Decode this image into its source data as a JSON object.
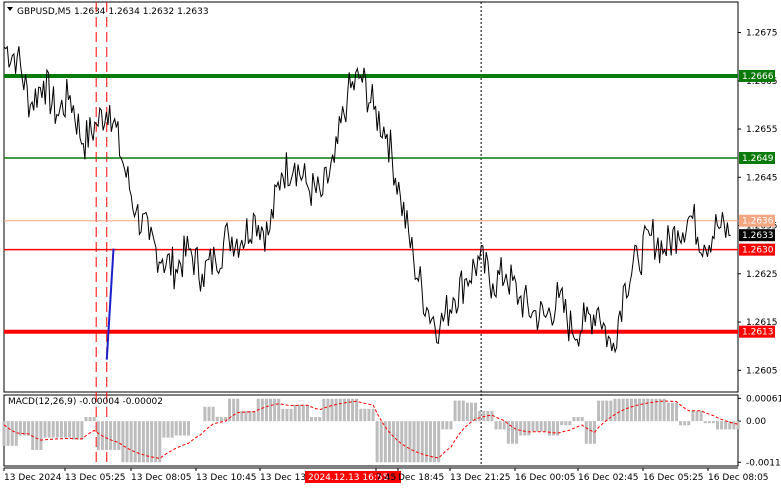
{
  "header": {
    "symbol": "GBPUSD,M5",
    "ohlc": "1.2634 1.2634 1.2632 1.2633"
  },
  "colors": {
    "background": "#ffffff",
    "price_line": "#000000",
    "resistance": "#0a7a0a",
    "support": "#ff0000",
    "current_price_line": "#f4a582",
    "bid_tag": "#000000",
    "arrow": "#1e1ec8",
    "macd_hist": "#bdbdbd",
    "macd_signal": "#ff0000",
    "vline": "#ff0000",
    "period_sep": "#000000",
    "time_highlight": "#ff0000"
  },
  "chart_data": [
    {
      "type": "line",
      "title": "",
      "y_axis_labels": [
        "1.2675",
        "1.2665",
        "1.2655",
        "1.2645",
        "1.2635",
        "1.2625",
        "1.2615",
        "1.2605"
      ],
      "ylim": [
        1.26005,
        1.26805
      ],
      "x_axis_labels": [
        "13 Dec 2024",
        "13 Dec 05:25",
        "13 Dec 08:05",
        "13 Dec 10:45",
        "13 Dec 13:",
        "2024.12.13 16:55",
        "7:45",
        "Dec 18:45",
        "13 Dec 21:25",
        "16 Dec 00:05",
        "16 Dec 02:45",
        "16 Dec 05:25",
        "16 Dec 08:05"
      ],
      "highlighted_time": "2024.12.13 16:55",
      "levels": [
        {
          "value": 1.2666,
          "label": "1.2666",
          "kind": "resistance",
          "thick": true
        },
        {
          "value": 1.2649,
          "label": "1.2649",
          "kind": "resistance",
          "thick": false
        },
        {
          "value": 1.2636,
          "label": "1.2636",
          "kind": "current",
          "thick": false
        },
        {
          "value": 1.263,
          "label": "1.2630",
          "kind": "support",
          "thick": false
        },
        {
          "value": 1.2613,
          "label": "1.2613",
          "kind": "support",
          "thick": true
        }
      ],
      "bid": {
        "value": 1.2633,
        "label": "1.2633"
      },
      "arrow": {
        "from": [
          0.14,
          1.26072
        ],
        "to": [
          0.1492,
          1.26302
        ]
      },
      "vertical_lines": [
        0.1256,
        0.14
      ],
      "period_separators": [
        0.65
      ],
      "series": [
        {
          "x": [
            0.0,
            0.018,
            0.036,
            0.054,
            0.072,
            0.09,
            0.108,
            0.126,
            0.144,
            0.162,
            0.18,
            0.198,
            0.216,
            0.234,
            0.252,
            0.27,
            0.288,
            0.306,
            0.324,
            0.342,
            0.36,
            0.378,
            0.396,
            0.414,
            0.432,
            0.45,
            0.468,
            0.486,
            0.504,
            0.522,
            0.54,
            0.558,
            0.576,
            0.594,
            0.612,
            0.63,
            0.648,
            0.666,
            0.684,
            0.702,
            0.72,
            0.738,
            0.756,
            0.774,
            0.792,
            0.81,
            0.828,
            0.846,
            0.864,
            0.882,
            0.9,
            0.918,
            0.936,
            0.954,
            0.972,
            0.99
          ],
          "y": [
            1.2672,
            1.267,
            1.266,
            1.2665,
            1.2658,
            1.2662,
            1.2652,
            1.2656,
            1.266,
            1.2648,
            1.2638,
            1.2632,
            1.2628,
            1.2626,
            1.263,
            1.2625,
            1.2628,
            1.2633,
            1.2632,
            1.2637,
            1.2633,
            1.2646,
            1.2648,
            1.2643,
            1.2641,
            1.2648,
            1.2662,
            1.2666,
            1.2659,
            1.2654,
            1.2641,
            1.2628,
            1.2618,
            1.2614,
            1.262,
            1.2624,
            1.2628,
            1.2623,
            1.2625,
            1.262,
            1.2617,
            1.2616,
            1.262,
            1.2613,
            1.2615,
            1.2618,
            1.2609,
            1.2623,
            1.2628,
            1.2633,
            1.263,
            1.2634,
            1.2637,
            1.2631,
            1.2635,
            1.2633
          ]
        }
      ]
    },
    {
      "type": "bar",
      "title": "MACD(12,26,9) -0.00004 -0.00002",
      "y_axis_labels": [
        "0.00061",
        "0.00",
        "-0.0011"
      ],
      "ylim": [
        -0.0012,
        0.0007
      ]
    }
  ]
}
